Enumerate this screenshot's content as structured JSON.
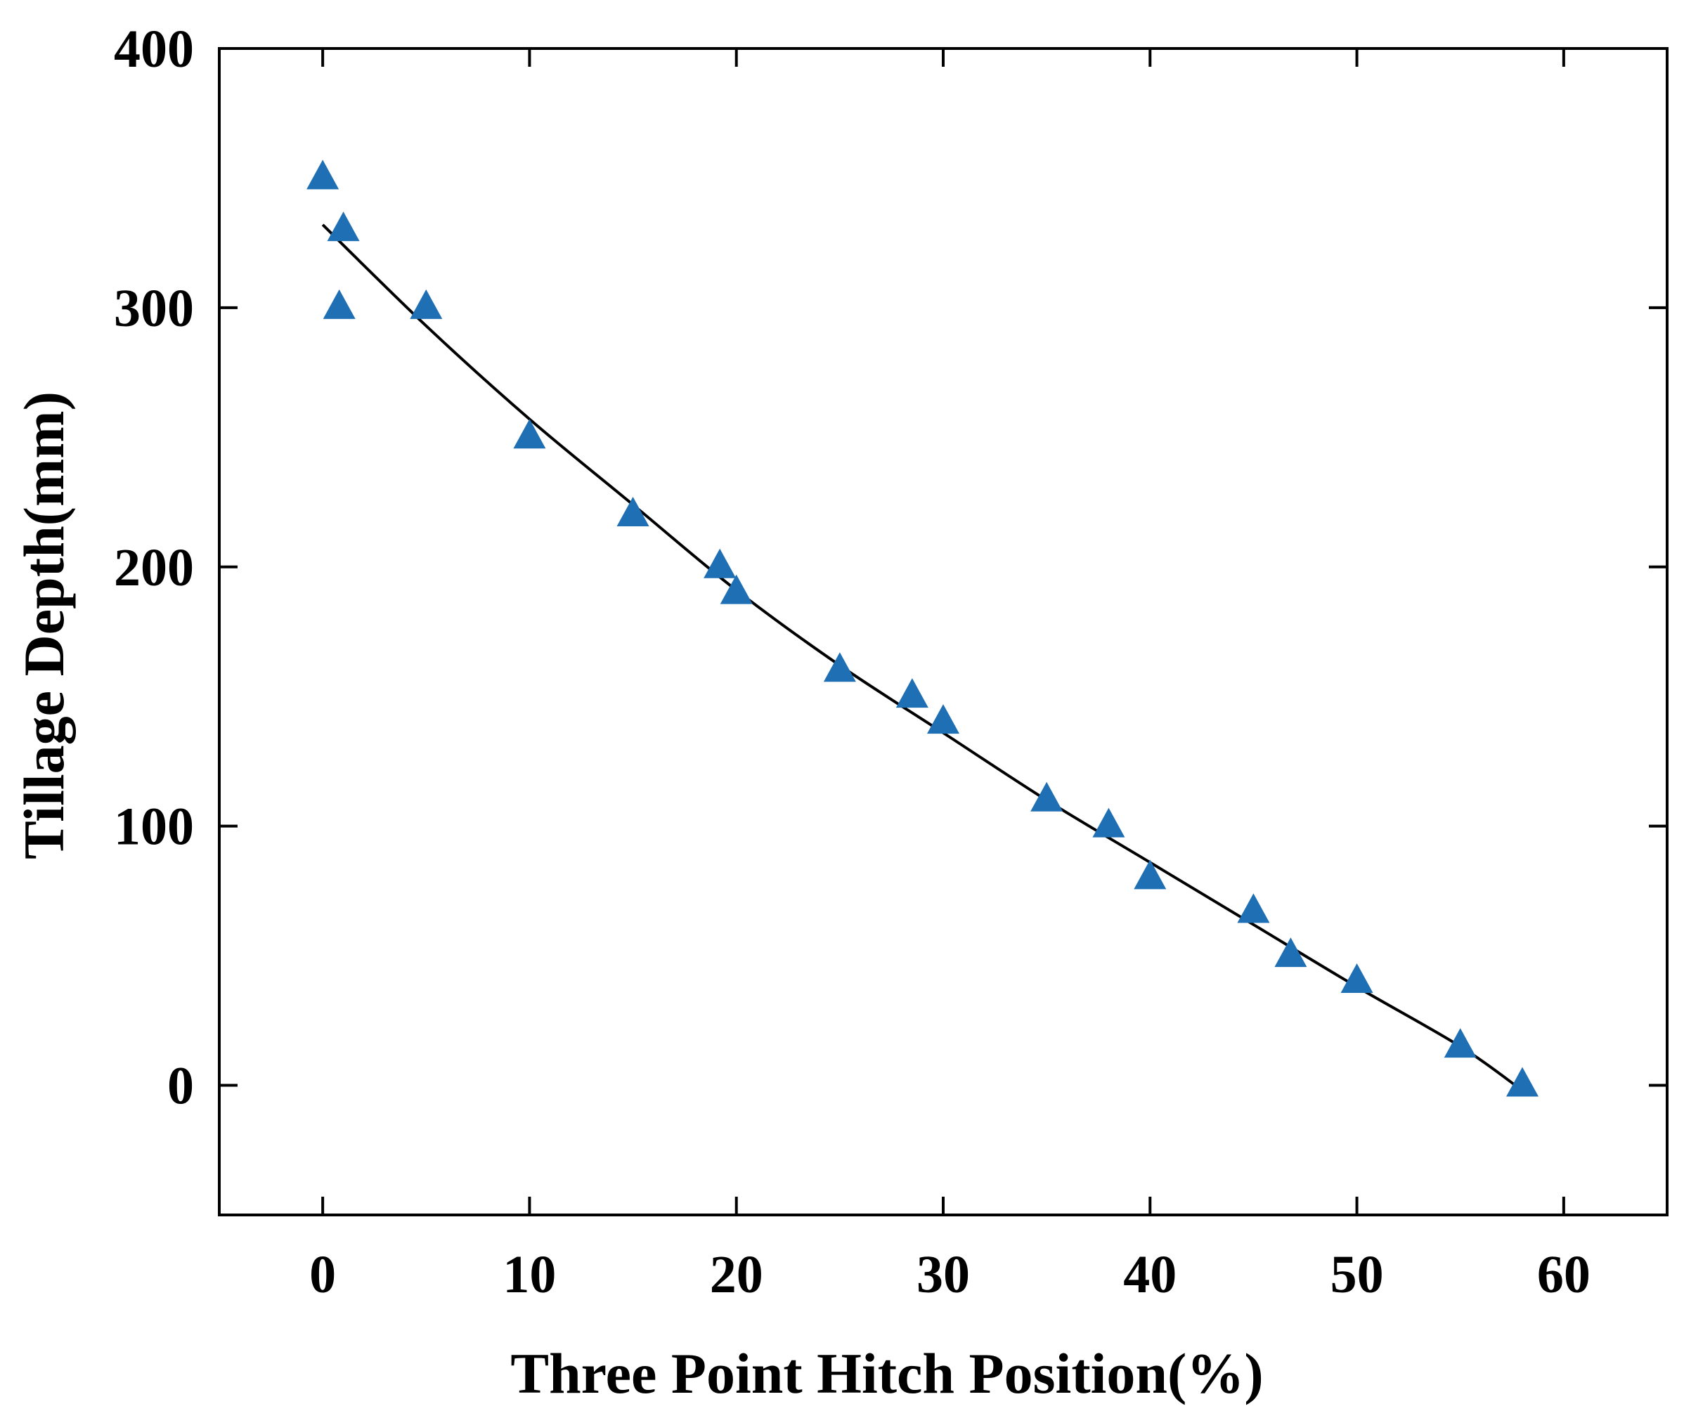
{
  "chart_data": {
    "type": "scatter",
    "title": "",
    "xlabel": "Three Point Hitch Position(%)",
    "ylabel": "Tillage Depth(mm)",
    "xlim": [
      -5,
      65
    ],
    "ylim": [
      -50,
      400
    ],
    "xticks": [
      0,
      10,
      20,
      30,
      40,
      50,
      60
    ],
    "yticks": [
      0,
      100,
      200,
      300,
      400
    ],
    "grid": false,
    "legend": "none",
    "marker": "triangle",
    "marker_color": "#1f6fb5",
    "series": [
      {
        "points": [
          [
            0,
            350
          ],
          [
            1,
            330
          ],
          [
            0.8,
            300
          ],
          [
            5,
            300
          ],
          [
            10,
            250
          ],
          [
            15,
            220
          ],
          [
            19.2,
            200
          ],
          [
            20,
            190
          ],
          [
            25,
            160
          ],
          [
            28.5,
            150
          ],
          [
            30,
            140
          ],
          [
            35,
            110
          ],
          [
            38,
            100
          ],
          [
            40,
            80
          ],
          [
            45,
            67
          ],
          [
            46.8,
            50
          ],
          [
            50,
            40
          ],
          [
            55,
            15
          ],
          [
            58,
            0
          ]
        ]
      }
    ],
    "fit_curve": {
      "color": "#000000",
      "points": [
        [
          0,
          332
        ],
        [
          5,
          293
        ],
        [
          10,
          257
        ],
        [
          15,
          224
        ],
        [
          20,
          191
        ],
        [
          25,
          162
        ],
        [
          30,
          136
        ],
        [
          35,
          110
        ],
        [
          40,
          86
        ],
        [
          45,
          62
        ],
        [
          50,
          38
        ],
        [
          55,
          15
        ],
        [
          58,
          -2
        ]
      ]
    }
  }
}
